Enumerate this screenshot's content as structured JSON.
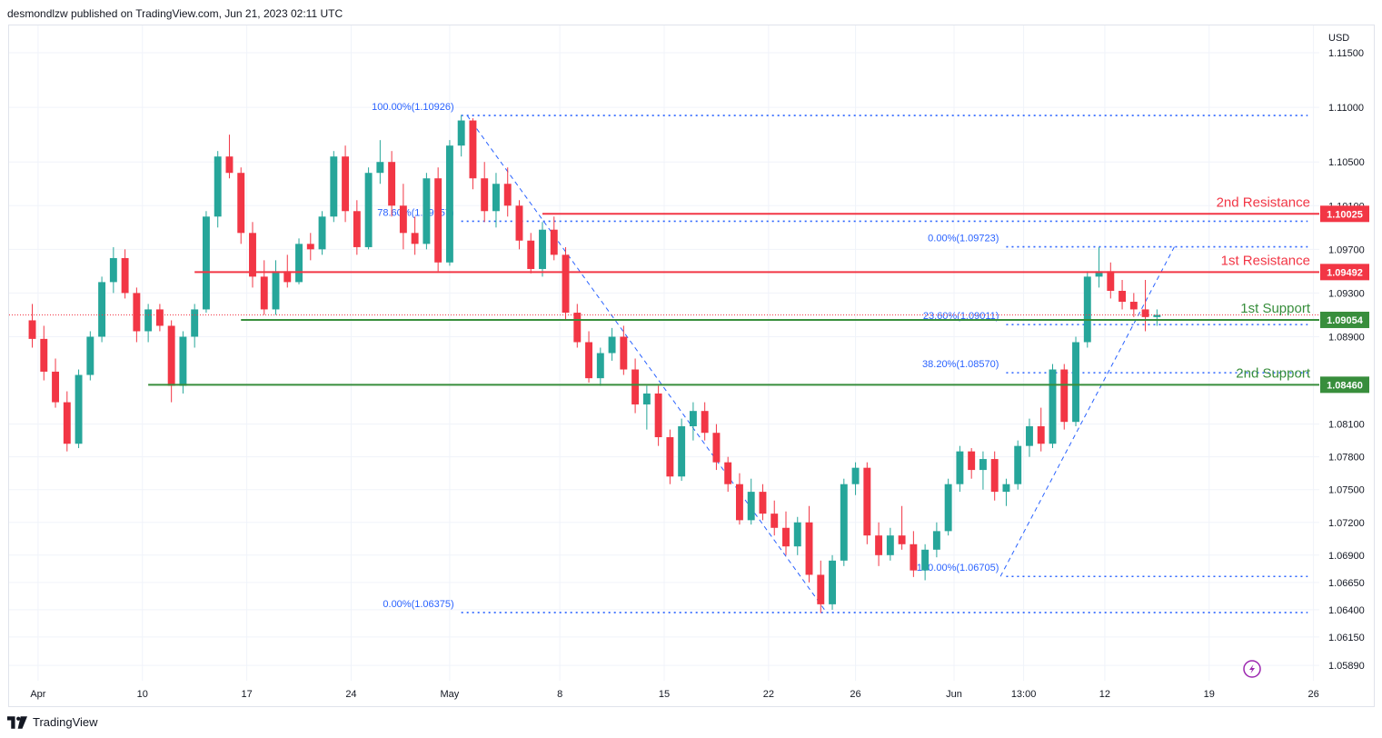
{
  "header": {
    "publisher_text": "desmondlzw published on TradingView.com, Jun 21, 2023 02:11 UTC"
  },
  "footer": {
    "brand_label": "TradingView",
    "logo_icon": "tradingview-logo-icon"
  },
  "chart_data": {
    "type": "candlestick",
    "currency_label": "USD",
    "ylim": [
      1.0575,
      1.1175
    ],
    "y_ticks": [
      {
        "value": 1.115,
        "label": "1.11500"
      },
      {
        "value": 1.11,
        "label": "1.11000"
      },
      {
        "value": 1.105,
        "label": "1.10500"
      },
      {
        "value": 1.101,
        "label": "1.10100"
      },
      {
        "value": 1.097,
        "label": "1.09700"
      },
      {
        "value": 1.093,
        "label": "1.09300"
      },
      {
        "value": 1.089,
        "label": "1.08900"
      },
      {
        "value": 1.081,
        "label": "1.08100"
      },
      {
        "value": 1.078,
        "label": "1.07800"
      },
      {
        "value": 1.075,
        "label": "1.07500"
      },
      {
        "value": 1.072,
        "label": "1.07200"
      },
      {
        "value": 1.069,
        "label": "1.06900"
      },
      {
        "value": 1.0665,
        "label": "1.06650"
      },
      {
        "value": 1.064,
        "label": "1.06400"
      },
      {
        "value": 1.0615,
        "label": "1.06150"
      },
      {
        "value": 1.0589,
        "label": "1.05890"
      }
    ],
    "x_ticks": [
      {
        "x": 0.5,
        "label": "Apr"
      },
      {
        "x": 9.5,
        "label": "10"
      },
      {
        "x": 18.5,
        "label": "17"
      },
      {
        "x": 27.5,
        "label": "24"
      },
      {
        "x": 36.0,
        "label": "May"
      },
      {
        "x": 45.5,
        "label": "8"
      },
      {
        "x": 54.5,
        "label": "15"
      },
      {
        "x": 63.5,
        "label": "22"
      },
      {
        "x": 71.0,
        "label": "26"
      },
      {
        "x": 79.5,
        "label": "Jun"
      },
      {
        "x": 85.5,
        "label": "13:00"
      },
      {
        "x": 92.5,
        "label": "12"
      },
      {
        "x": 101.5,
        "label": "19"
      },
      {
        "x": 110.5,
        "label": "26"
      }
    ],
    "x_range": [
      -2,
      111
    ],
    "candles": [
      [
        1.0905,
        1.092,
        1.088,
        1.0888
      ],
      [
        1.0888,
        1.09,
        1.085,
        1.0858
      ],
      [
        1.0858,
        1.087,
        1.0825,
        1.083
      ],
      [
        1.083,
        1.084,
        1.0785,
        1.0792
      ],
      [
        1.0792,
        1.086,
        1.0788,
        1.0855
      ],
      [
        1.0855,
        1.0895,
        1.085,
        1.089
      ],
      [
        1.089,
        1.0945,
        1.0885,
        1.094
      ],
      [
        1.094,
        1.0972,
        1.093,
        1.0962
      ],
      [
        1.0962,
        1.097,
        1.0925,
        1.093
      ],
      [
        1.093,
        1.0935,
        1.0885,
        1.0895
      ],
      [
        1.0895,
        1.092,
        1.0885,
        1.0915
      ],
      [
        1.0915,
        1.092,
        1.0895,
        1.09
      ],
      [
        1.09,
        1.0905,
        1.083,
        1.0845
      ],
      [
        1.0845,
        1.0895,
        1.0838,
        1.089
      ],
      [
        1.089,
        1.092,
        1.088,
        1.0915
      ],
      [
        1.0915,
        1.1005,
        1.0912,
        1.1
      ],
      [
        1.1,
        1.106,
        1.099,
        1.1055
      ],
      [
        1.1055,
        1.1075,
        1.1035,
        1.104
      ],
      [
        1.104,
        1.1045,
        1.0975,
        1.0985
      ],
      [
        1.0985,
        1.0995,
        1.0935,
        1.0945
      ],
      [
        1.0945,
        1.096,
        1.091,
        1.0915
      ],
      [
        1.0915,
        1.096,
        1.091,
        1.095
      ],
      [
        1.095,
        1.0965,
        1.0935,
        1.094
      ],
      [
        1.094,
        1.098,
        1.0938,
        1.0975
      ],
      [
        1.0975,
        1.0985,
        1.096,
        1.097
      ],
      [
        1.097,
        1.1005,
        1.0965,
        1.1
      ],
      [
        1.1,
        1.106,
        1.0995,
        1.1055
      ],
      [
        1.1055,
        1.1065,
        1.0995,
        1.1005
      ],
      [
        1.1005,
        1.1015,
        1.0965,
        1.0972
      ],
      [
        1.0972,
        1.1045,
        1.097,
        1.104
      ],
      [
        1.104,
        1.107,
        1.103,
        1.105
      ],
      [
        1.105,
        1.106,
        1.1,
        1.101
      ],
      [
        1.101,
        1.103,
        1.097,
        1.0985
      ],
      [
        1.0985,
        1.1,
        1.0965,
        1.0975
      ],
      [
        1.0975,
        1.104,
        1.097,
        1.1035
      ],
      [
        1.1035,
        1.1045,
        1.095,
        1.0958
      ],
      [
        1.0958,
        1.107,
        1.0955,
        1.1065
      ],
      [
        1.1065,
        1.1093,
        1.1055,
        1.1088
      ],
      [
        1.1088,
        1.109,
        1.1025,
        1.1035
      ],
      [
        1.1035,
        1.105,
        1.0995,
        1.1005
      ],
      [
        1.1005,
        1.104,
        1.099,
        1.103
      ],
      [
        1.103,
        1.1045,
        1.1,
        1.101
      ],
      [
        1.101,
        1.1015,
        1.097,
        1.0978
      ],
      [
        1.0978,
        1.0985,
        1.0948,
        1.0952
      ],
      [
        1.0952,
        1.0995,
        1.0945,
        1.0988
      ],
      [
        1.0988,
        1.1,
        1.096,
        1.0965
      ],
      [
        1.0965,
        1.0972,
        1.0905,
        1.0912
      ],
      [
        1.0912,
        1.092,
        1.088,
        1.0885
      ],
      [
        1.0885,
        1.0895,
        1.0848,
        1.0852
      ],
      [
        1.0852,
        1.088,
        1.0845,
        1.0875
      ],
      [
        1.0875,
        1.0898,
        1.0868,
        1.089
      ],
      [
        1.089,
        1.09,
        1.0855,
        1.086
      ],
      [
        1.086,
        1.087,
        1.082,
        1.0828
      ],
      [
        1.0828,
        1.0845,
        1.0805,
        1.0838
      ],
      [
        1.0838,
        1.0845,
        1.079,
        1.0798
      ],
      [
        1.0798,
        1.0805,
        1.0755,
        1.0762
      ],
      [
        1.0762,
        1.0815,
        1.0758,
        1.0808
      ],
      [
        1.0808,
        1.083,
        1.0795,
        1.0822
      ],
      [
        1.0822,
        1.083,
        1.0795,
        1.0802
      ],
      [
        1.0802,
        1.081,
        1.0768,
        1.0775
      ],
      [
        1.0775,
        1.078,
        1.0748,
        1.0755
      ],
      [
        1.0755,
        1.0765,
        1.0718,
        1.0722
      ],
      [
        1.0722,
        1.076,
        1.0718,
        1.0748
      ],
      [
        1.0748,
        1.0755,
        1.0722,
        1.0728
      ],
      [
        1.0728,
        1.074,
        1.0708,
        1.0715
      ],
      [
        1.0715,
        1.073,
        1.069,
        1.0698
      ],
      [
        1.0698,
        1.0725,
        1.069,
        1.072
      ],
      [
        1.072,
        1.0735,
        1.0665,
        1.0672
      ],
      [
        1.0672,
        1.0685,
        1.0637,
        1.0645
      ],
      [
        1.0645,
        1.069,
        1.064,
        1.0685
      ],
      [
        1.0685,
        1.076,
        1.068,
        1.0755
      ],
      [
        1.0755,
        1.0775,
        1.0745,
        1.077
      ],
      [
        1.077,
        1.0775,
        1.07,
        1.0708
      ],
      [
        1.0708,
        1.072,
        1.068,
        1.069
      ],
      [
        1.069,
        1.0715,
        1.0685,
        1.0708
      ],
      [
        1.0708,
        1.0735,
        1.0695,
        1.07
      ],
      [
        1.07,
        1.0712,
        1.067,
        1.0676
      ],
      [
        1.0676,
        1.07,
        1.0667,
        1.0695
      ],
      [
        1.0695,
        1.072,
        1.0688,
        1.0712
      ],
      [
        1.0712,
        1.076,
        1.0708,
        1.0755
      ],
      [
        1.0755,
        1.079,
        1.0748,
        1.0785
      ],
      [
        1.0785,
        1.0788,
        1.076,
        1.0768
      ],
      [
        1.0768,
        1.0785,
        1.075,
        1.0778
      ],
      [
        1.0778,
        1.0785,
        1.074,
        1.0748
      ],
      [
        1.0748,
        1.076,
        1.0735,
        1.0755
      ],
      [
        1.0755,
        1.0795,
        1.075,
        1.079
      ],
      [
        1.079,
        1.0815,
        1.078,
        1.0808
      ],
      [
        1.0808,
        1.0825,
        1.0785,
        1.0792
      ],
      [
        1.0792,
        1.0865,
        1.0788,
        1.086
      ],
      [
        1.086,
        1.0865,
        1.0805,
        1.0812
      ],
      [
        1.0812,
        1.089,
        1.0808,
        1.0885
      ],
      [
        1.0885,
        1.095,
        1.088,
        1.0945
      ],
      [
        1.0945,
        1.0972,
        1.0935,
        1.095
      ],
      [
        1.095,
        1.0958,
        1.0925,
        1.0932
      ],
      [
        1.0932,
        1.0942,
        1.0915,
        1.0922
      ],
      [
        1.0922,
        1.093,
        1.0908,
        1.0915
      ],
      [
        1.0915,
        1.0942,
        1.0895,
        1.0908
      ],
      [
        1.0908,
        1.0915,
        1.09,
        1.091
      ]
    ],
    "horizontal_levels": [
      {
        "name": "2nd Resistance",
        "value": 1.10025,
        "label": "1.10025",
        "color": "#f23645",
        "kind": "resistance"
      },
      {
        "name": "1st Resistance",
        "value": 1.09492,
        "label": "1.09492",
        "color": "#f23645",
        "kind": "resistance"
      },
      {
        "name": "1st Support",
        "value": 1.09054,
        "label": "1.09054",
        "color": "#388e3c",
        "kind": "support"
      },
      {
        "name": "2nd Support",
        "value": 1.0846,
        "label": "1.08460",
        "color": "#388e3c",
        "kind": "support"
      }
    ],
    "level_start_x": {
      "2nd Resistance": 44,
      "1st Resistance": 14,
      "1st Support": 18,
      "2nd Support": 10
    },
    "fib_levels": [
      {
        "label": "100.00%(1.10926)",
        "value": 1.10926,
        "x_start": 37,
        "x_end": 110
      },
      {
        "label": "78.60%(1.09957)",
        "value": 1.09957,
        "x_start": 37,
        "x_end": 110
      },
      {
        "label": "0.00%(1.06375)",
        "value": 1.06375,
        "x_start": 37,
        "x_end": 110
      },
      {
        "label": "0.00%(1.09723)",
        "value": 1.09723,
        "x_start": 84,
        "x_end": 110
      },
      {
        "label": "23.60%(1.09011)",
        "value": 1.09011,
        "x_start": 84,
        "x_end": 110
      },
      {
        "label": "38.20%(1.08570)",
        "value": 1.0857,
        "x_start": 84,
        "x_end": 110
      },
      {
        "label": "100.00%(1.06705)",
        "value": 1.06705,
        "x_start": 84,
        "x_end": 110
      }
    ],
    "fib_trend_lines": [
      {
        "x1": 37.5,
        "y1": 1.10926,
        "x2": 68.5,
        "y2": 1.06375
      },
      {
        "x1": 83.5,
        "y1": 1.06705,
        "x2": 98.5,
        "y2": 1.09723
      }
    ],
    "last_price": 1.091,
    "colors": {
      "up": "#26a69a",
      "down": "#f23645",
      "fib": "#2962ff",
      "fib_text": "#2962ff",
      "grid": "#f0f3fa",
      "axis_text": "#131722",
      "last_price": "#f23645",
      "watermark_icon": "#9c27b0"
    },
    "watermark_icon": "lightning-bolt-icon"
  }
}
